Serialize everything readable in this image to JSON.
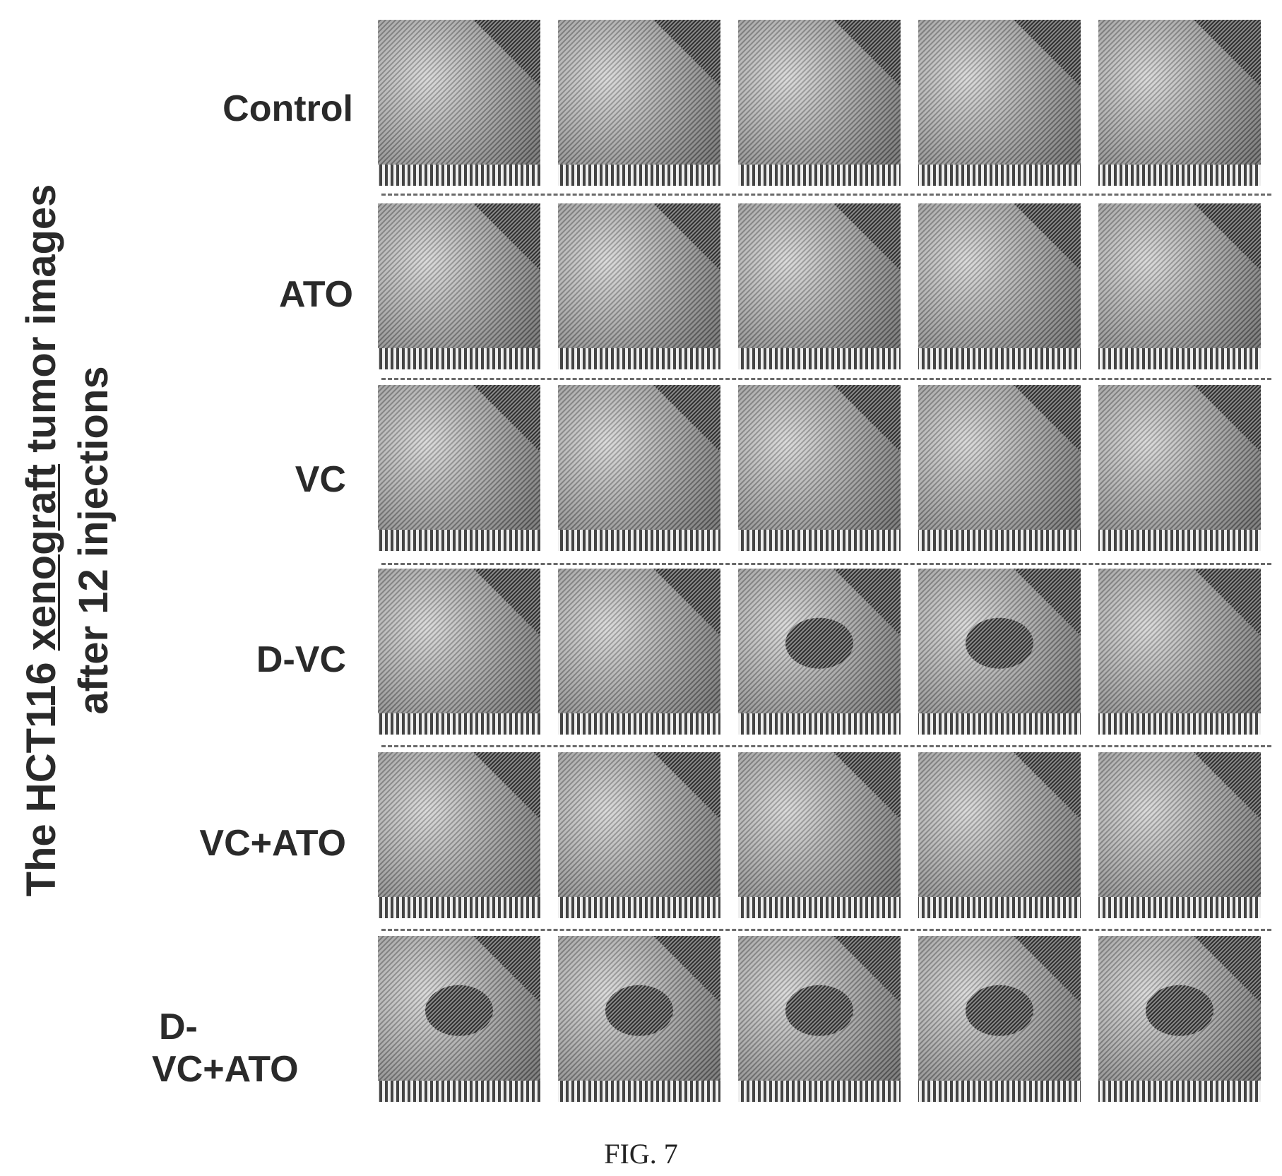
{
  "figure": {
    "vertical_title_line1_a": "The HCT116 ",
    "vertical_title_line1_b": "xenograft",
    "vertical_title_line1_c": " tumor images",
    "vertical_title_line2": "after 12 injections",
    "caption": "FIG. 7"
  },
  "rows": [
    {
      "label": "Control",
      "tumor": [
        0,
        0,
        0,
        0,
        0
      ]
    },
    {
      "label": "ATO",
      "tumor": [
        0,
        0,
        0,
        0,
        0
      ]
    },
    {
      "label": "VC",
      "tumor": [
        0,
        0,
        0,
        0,
        0
      ]
    },
    {
      "label": "D-VC",
      "tumor": [
        0,
        0,
        1,
        1,
        0
      ]
    },
    {
      "label": "VC+ATO",
      "tumor": [
        0,
        0,
        0,
        0,
        0
      ]
    },
    {
      "label_line1": "D-",
      "label_line2": "VC+ATO",
      "tumor": [
        1,
        1,
        1,
        1,
        1
      ]
    }
  ],
  "colors": {
    "text": "#2a2a2a",
    "photo_light": "#bdbdbd",
    "photo_dark": "#4a4a4a"
  }
}
